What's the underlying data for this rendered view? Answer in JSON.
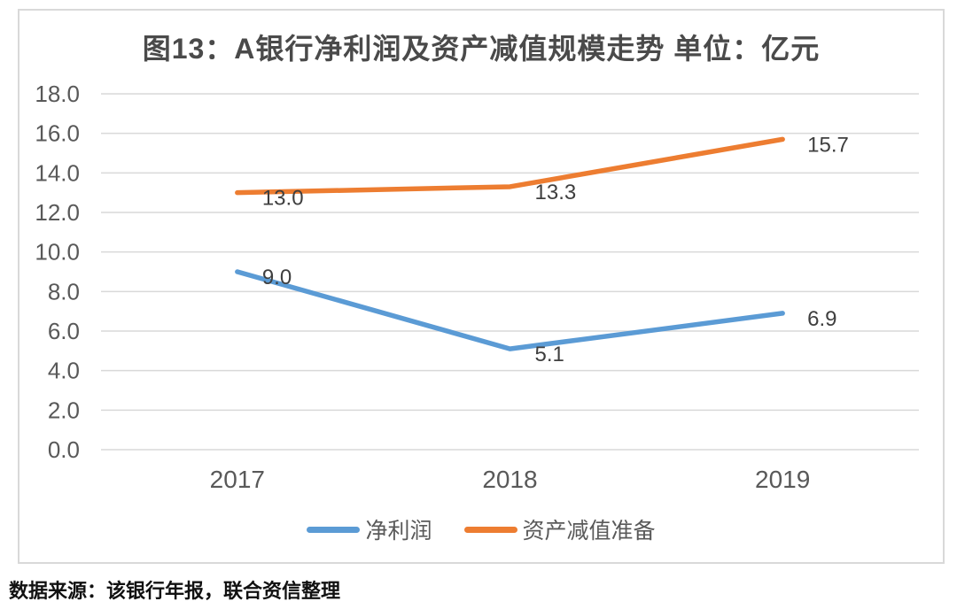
{
  "chart_data": {
    "type": "line",
    "title": "图13：A银行净利润及资产减值规模走势 单位：亿元",
    "categories": [
      "2017",
      "2018",
      "2019"
    ],
    "series": [
      {
        "key": "net-profit",
        "name": "净利润",
        "color": "#5B9BD5",
        "values": [
          9.0,
          5.1,
          6.9
        ],
        "labels": [
          "9.0",
          "5.1",
          "6.9"
        ]
      },
      {
        "key": "asset-impairment-provision",
        "name": "资产减值准备",
        "color": "#ED7D31",
        "values": [
          13.0,
          13.3,
          15.7
        ],
        "labels": [
          "13.0",
          "13.3",
          "15.7"
        ]
      }
    ],
    "xlabel": "",
    "ylabel": "",
    "ylim": [
      0,
      18
    ],
    "ytick_step": 2,
    "ytick_labels": [
      "0.0",
      "2.0",
      "4.0",
      "6.0",
      "8.0",
      "10.0",
      "12.0",
      "14.0",
      "16.0",
      "18.0"
    ],
    "grid": true,
    "legend_position": "bottom",
    "colors": {
      "grid": "#D9D9D9",
      "frame_border": "#D9D9D9",
      "axis_text": "#595959",
      "data_label_text": "#3f3f3f",
      "title_text": "#4a4a4a"
    }
  },
  "source": {
    "text": "数据来源：该银行年报，联合资信整理"
  }
}
